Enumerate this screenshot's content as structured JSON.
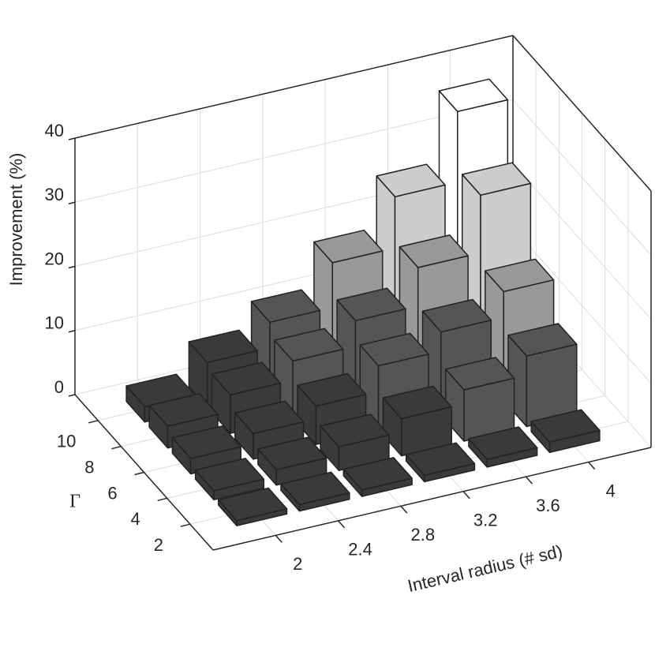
{
  "chart_data": {
    "type": "bar3",
    "xlabel": "Interval radius (# sd)",
    "ylabel": "Γ",
    "zlabel": "Improvement (%)",
    "x": [
      2,
      2.4,
      2.8,
      3.2,
      3.6,
      4
    ],
    "y": [
      2,
      4,
      6,
      8,
      10
    ],
    "values": [
      [
        0.8,
        1,
        1,
        1,
        1.2,
        1.6
      ],
      [
        1.4,
        2.4,
        3.7,
        5.8,
        8,
        11
      ],
      [
        2.4,
        4,
        6,
        10,
        13,
        17
      ],
      [
        3.4,
        6,
        9,
        13,
        19,
        28
      ],
      [
        2.4,
        7,
        11,
        18,
        26,
        37
      ]
    ],
    "xlim": [
      1.6,
      4.4
    ],
    "xticks": [
      2,
      2.4,
      2.8,
      3.2,
      3.6,
      4
    ],
    "ylim": [
      12,
      0
    ],
    "yticks": [
      2,
      4,
      6,
      8,
      10
    ],
    "zlim": [
      0,
      40
    ],
    "zticks": [
      0,
      10,
      20,
      30,
      40
    ],
    "grid": true,
    "colormap": [
      "#3a3a3a",
      "#555555",
      "#999999",
      "#cccccc",
      "#ffffff"
    ]
  }
}
